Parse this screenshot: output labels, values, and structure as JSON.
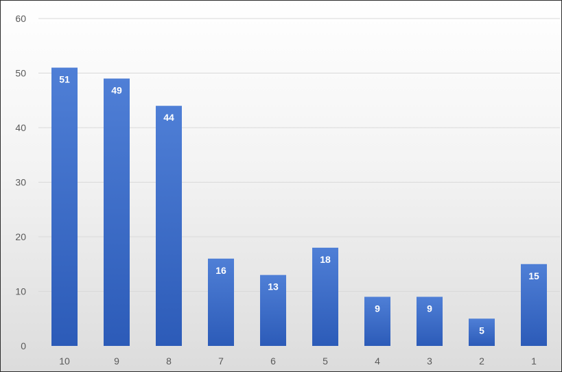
{
  "chart_data": {
    "type": "bar",
    "categories": [
      "10",
      "9",
      "8",
      "7",
      "6",
      "5",
      "4",
      "3",
      "2",
      "1"
    ],
    "values": [
      51,
      49,
      44,
      16,
      13,
      18,
      9,
      9,
      5,
      15
    ],
    "title": "",
    "xlabel": "",
    "ylabel": "",
    "ylim": [
      0,
      60
    ],
    "yticks": [
      0,
      10,
      20,
      30,
      40,
      50,
      60
    ],
    "grid": true,
    "data_labels": true,
    "colors": {
      "bar_top": "#4f7fd6",
      "bar_bottom": "#2c5bb8",
      "label": "#ffffff",
      "tick": "#595959",
      "grid": "#d9d9d9"
    }
  }
}
